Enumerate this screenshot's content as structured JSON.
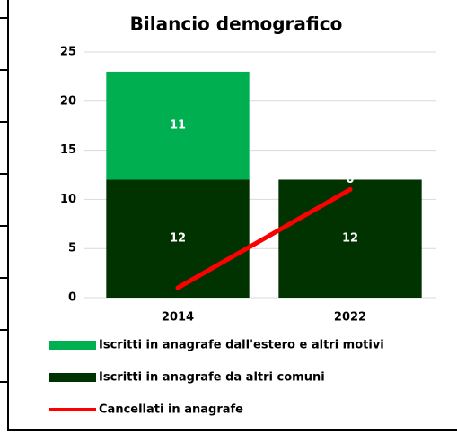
{
  "chart_data": {
    "type": "bar",
    "title": "Bilancio demografico",
    "categories": [
      "2014",
      "2022"
    ],
    "series": [
      {
        "name": "Iscritti in anagrafe dall'estero e altri motivi",
        "color": "#00b050",
        "values": [
          11,
          0
        ]
      },
      {
        "name": "Iscritti in anagrafe da altri comuni",
        "color": "#003300",
        "values": [
          12,
          12
        ]
      },
      {
        "name": "Cancellati in anagrafe",
        "type": "line",
        "color": "#ff0000",
        "values": [
          1,
          11
        ]
      }
    ],
    "stacked": true,
    "ylim": [
      0,
      25
    ],
    "yticks": [
      0,
      5,
      10,
      15,
      20,
      25
    ],
    "grid": true
  }
}
